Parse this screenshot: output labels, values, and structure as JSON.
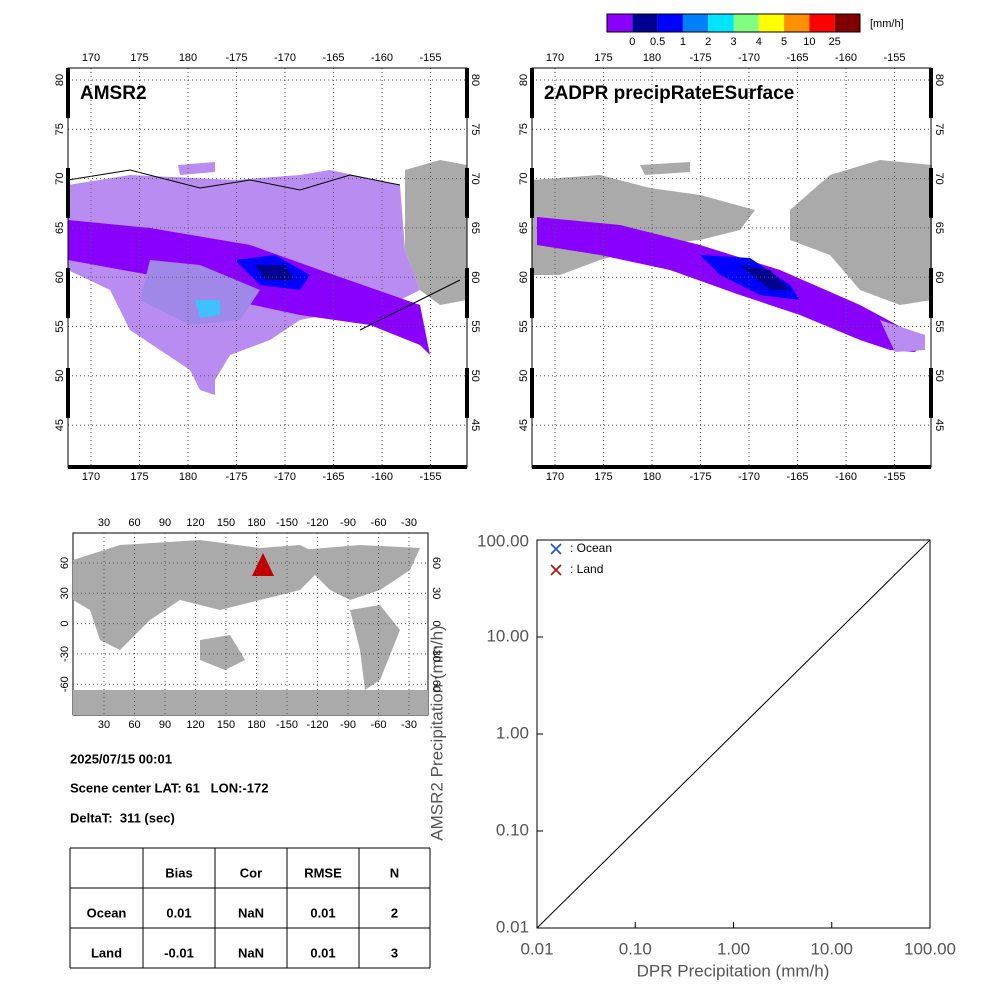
{
  "colorbar": {
    "unit": "[mm/h]",
    "labels": [
      "0",
      "0.5",
      "1",
      "2",
      "3",
      "4",
      "5",
      "10",
      "25"
    ],
    "colors": [
      "#8a00ff",
      "#000090",
      "#0000ff",
      "#0080ff",
      "#00e5ff",
      "#80ff80",
      "#ffff00",
      "#ff9000",
      "#ff0000",
      "#800000"
    ]
  },
  "maps": [
    {
      "title": "AMSR2",
      "lon_ticks": [
        "170",
        "175",
        "180",
        "-175",
        "-170",
        "-165",
        "-160",
        "-155"
      ],
      "lat_ticks": [
        "80",
        "75",
        "70",
        "65",
        "60",
        "55",
        "50",
        "45"
      ]
    },
    {
      "title": "2ADPR precipRateESurface",
      "lon_ticks": [
        "170",
        "175",
        "180",
        "-175",
        "-170",
        "-165",
        "-160",
        "-155"
      ],
      "lat_ticks": [
        "80",
        "75",
        "70",
        "65",
        "60",
        "55",
        "50",
        "45"
      ]
    }
  ],
  "globe": {
    "lon_ticks": [
      "30",
      "60",
      "90",
      "120",
      "150",
      "180",
      "-150",
      "-120",
      "-90",
      "-60",
      "-30"
    ],
    "lat_ticks": [
      "60",
      "30",
      "0",
      "-30",
      "-60"
    ]
  },
  "info": {
    "datetime": "2025/07/15 00:01",
    "scene": "Scene center LAT: 61   LON:-172",
    "delta": "DeltaT:  311 (sec)"
  },
  "table": {
    "header": [
      "Bias",
      "Cor",
      "RMSE",
      "N"
    ],
    "rows": [
      {
        "label": "Ocean",
        "cells": [
          "0.01",
          "NaN",
          "0.01",
          "2"
        ]
      },
      {
        "label": "Land",
        "cells": [
          "-0.01",
          "NaN",
          "0.01",
          "3"
        ]
      }
    ]
  },
  "chart_data": {
    "type": "scatter",
    "xlabel": "DPR Precipitation (mm/h)",
    "ylabel": "AMSR2 Precipitation (mm/h)",
    "log_x": true,
    "log_y": true,
    "xlim": [
      0.01,
      100
    ],
    "ylim": [
      0.01,
      100
    ],
    "xticks": [
      {
        "value": 0.01,
        "label": "0.01"
      },
      {
        "value": 0.1,
        "label": "0.10"
      },
      {
        "value": 1,
        "label": "1.00"
      },
      {
        "value": 10,
        "label": "10.00"
      },
      {
        "value": 100,
        "label": "100.00"
      }
    ],
    "yticks": [
      {
        "value": 0.01,
        "label": "0.01"
      },
      {
        "value": 0.1,
        "label": "0.10"
      },
      {
        "value": 1,
        "label": "1.00"
      },
      {
        "value": 10,
        "label": "10.00"
      },
      {
        "value": 100,
        "label": "100.00"
      }
    ],
    "series": [
      {
        "name": ": Ocean",
        "color": "#1a4fd8",
        "x": [],
        "values": []
      },
      {
        "name": ": Land",
        "color": "#b01010",
        "x": [],
        "values": []
      }
    ]
  }
}
